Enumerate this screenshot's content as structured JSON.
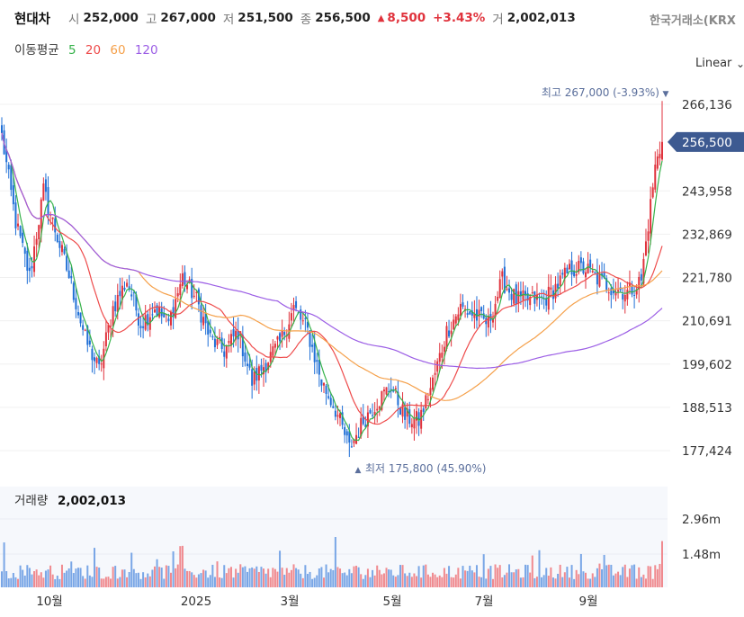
{
  "header": {
    "name": "현대차",
    "open_label": "시",
    "open": "252,000",
    "high_label": "고",
    "high": "267,000",
    "low_label": "저",
    "low": "251,500",
    "close_label": "종",
    "close": "256,500",
    "change": "8,500",
    "change_pct": "+3.43%",
    "volume_label": "거",
    "volume": "2,002,013",
    "exchange": "한국거래소(KRX"
  },
  "moving_average": {
    "label": "이동평균",
    "periods": [
      {
        "value": "5",
        "color": "#36b24a"
      },
      {
        "value": "20",
        "color": "#ee4b4b"
      },
      {
        "value": "60",
        "color": "#f5a04a"
      },
      {
        "value": "120",
        "color": "#9b5de5"
      }
    ]
  },
  "scale_mode": "Linear",
  "volume_panel": {
    "label": "거래량",
    "value": "2,002,013"
  },
  "colors": {
    "up": "#e0323c",
    "down": "#1f6fd6",
    "price_tag": "#3d5a91",
    "annotation": "#5b6f9c"
  },
  "chart_data": {
    "type": "candlestick",
    "price_axis_ticks": [
      "266,136",
      "256,500",
      "243,958",
      "232,869",
      "221,780",
      "210,691",
      "199,602",
      "188,513",
      "177,424"
    ],
    "tick_values": [
      266136,
      243958,
      232869,
      221780,
      210691,
      199602,
      188513,
      177424
    ],
    "volume_axis_ticks": [
      "2.96m",
      "1.48m"
    ],
    "x_labels": [
      "10월",
      "2025",
      "3월",
      "5월",
      "7월",
      "9월"
    ],
    "current_price": 256500,
    "current_price_label": "256,500",
    "high_annotation": "최고 267,000 (-3.93%)",
    "low_annotation": "최저 175,800 (45.90%)",
    "series": [
      {
        "name": "5",
        "color": "#36b24a"
      },
      {
        "name": "20",
        "color": "#ee4b4b"
      },
      {
        "name": "60",
        "color": "#f5a04a"
      },
      {
        "name": "120",
        "color": "#9b5de5"
      }
    ],
    "close_waypoints": [
      [
        0,
        258000
      ],
      [
        6,
        236000
      ],
      [
        12,
        222000
      ],
      [
        18,
        244000
      ],
      [
        24,
        232000
      ],
      [
        30,
        220000
      ],
      [
        36,
        206000
      ],
      [
        42,
        198000
      ],
      [
        48,
        214000
      ],
      [
        54,
        221000
      ],
      [
        60,
        210000
      ],
      [
        66,
        214000
      ],
      [
        72,
        210000
      ],
      [
        78,
        222000
      ],
      [
        84,
        216000
      ],
      [
        90,
        206000
      ],
      [
        96,
        203000
      ],
      [
        102,
        208000
      ],
      [
        108,
        195000
      ],
      [
        114,
        200000
      ],
      [
        120,
        205000
      ],
      [
        126,
        214000
      ],
      [
        132,
        208000
      ],
      [
        138,
        195000
      ],
      [
        144,
        188000
      ],
      [
        150,
        178000
      ],
      [
        156,
        185000
      ],
      [
        162,
        190000
      ],
      [
        168,
        194000
      ],
      [
        174,
        186000
      ],
      [
        180,
        185000
      ],
      [
        186,
        195000
      ],
      [
        192,
        208000
      ],
      [
        198,
        214000
      ],
      [
        204,
        212000
      ],
      [
        210,
        210000
      ],
      [
        216,
        221000
      ],
      [
        222,
        216000
      ],
      [
        228,
        216000
      ],
      [
        234,
        216000
      ],
      [
        240,
        220000
      ],
      [
        246,
        224000
      ],
      [
        252,
        224000
      ],
      [
        258,
        221000
      ],
      [
        264,
        219000
      ],
      [
        270,
        218000
      ],
      [
        276,
        221000
      ],
      [
        282,
        250000
      ],
      [
        285,
        256500
      ]
    ]
  }
}
